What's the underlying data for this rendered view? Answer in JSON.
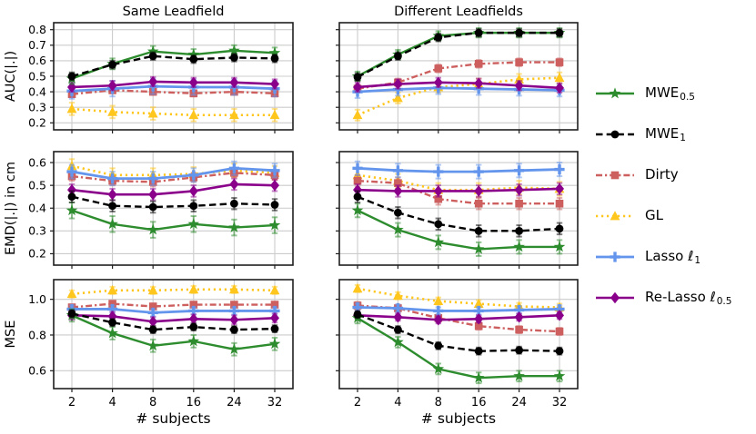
{
  "figure": {
    "background": "#ffffff",
    "xlabel": "# subjects",
    "categories": [
      "2",
      "4",
      "8",
      "16",
      "24",
      "32"
    ],
    "col_titles": [
      "Same Leadfield",
      "Different Leadfields"
    ],
    "grid_color": "#cccccc",
    "axis_color": "#1f1f1f",
    "text_color": "#000000",
    "draw_order": [
      "gl",
      "dirty",
      "lasso",
      "relasso",
      "mwe05",
      "mwe1"
    ]
  },
  "series_styles": [
    {
      "id": "mwe05",
      "label_main": "MWE",
      "label_sub": "0.5",
      "color": "#2d8c2d",
      "marker": "star",
      "dash": "solid",
      "lw": 2.4
    },
    {
      "id": "mwe1",
      "label_main": "MWE",
      "label_sub": "1",
      "color": "#000000",
      "marker": "circle",
      "dash": "dashed",
      "lw": 2.4
    },
    {
      "id": "dirty",
      "label_main": "Dirty",
      "label_sub": "",
      "color": "#cd5f5f",
      "marker": "square",
      "dash": "dashdot",
      "lw": 2.4
    },
    {
      "id": "gl",
      "label_main": "GL",
      "label_sub": "",
      "color": "#ffc61e",
      "marker": "triangle",
      "dash": "dotted",
      "lw": 2.6
    },
    {
      "id": "lasso",
      "label_main": "Lasso ℓ",
      "label_sub": "1",
      "color": "#6495ed",
      "marker": "plus",
      "dash": "solid",
      "lw": 2.8
    },
    {
      "id": "relasso",
      "label_main": "Re-Lasso ℓ",
      "label_sub": "0.5",
      "color": "#8b008b",
      "marker": "diamond",
      "dash": "solid",
      "lw": 2.6
    }
  ],
  "chart_data": [
    {
      "type": "line",
      "id": "auc-same",
      "row": 0,
      "col": 0,
      "title": "Same Leadfield",
      "ylabel": "AUC(|.|)",
      "x_categories": [
        "2",
        "4",
        "8",
        "16",
        "24",
        "32"
      ],
      "ylim": [
        0.155,
        0.845
      ],
      "yticks": [
        0.2,
        0.3,
        0.4,
        0.5,
        0.6,
        0.7,
        0.8
      ],
      "grid": true,
      "series": [
        {
          "id": "mwe05",
          "name": "MWE_0.5",
          "values": [
            0.485,
            0.58,
            0.66,
            0.64,
            0.665,
            0.65
          ],
          "err": 0.035
        },
        {
          "id": "mwe1",
          "name": "MWE_1",
          "values": [
            0.5,
            0.575,
            0.63,
            0.61,
            0.62,
            0.615
          ],
          "err": 0.025
        },
        {
          "id": "dirty",
          "name": "Dirty",
          "values": [
            0.385,
            0.41,
            0.4,
            0.39,
            0.4,
            0.39
          ],
          "err": 0.02
        },
        {
          "id": "gl",
          "name": "GL",
          "values": [
            0.29,
            0.27,
            0.26,
            0.25,
            0.25,
            0.25
          ],
          "err": 0.04
        },
        {
          "id": "lasso",
          "name": "Lasso l1",
          "values": [
            0.405,
            0.42,
            0.435,
            0.43,
            0.43,
            0.42
          ],
          "err": 0.05
        },
        {
          "id": "relasso",
          "name": "Re-Lasso l0.5",
          "values": [
            0.43,
            0.44,
            0.465,
            0.46,
            0.46,
            0.45
          ],
          "err": 0.03
        }
      ]
    },
    {
      "type": "line",
      "id": "auc-diff",
      "row": 0,
      "col": 1,
      "title": "Different Leadfields",
      "ylabel": "",
      "x_categories": [
        "2",
        "4",
        "8",
        "16",
        "24",
        "32"
      ],
      "ylim": [
        0.155,
        0.845
      ],
      "yticks": [
        0.2,
        0.3,
        0.4,
        0.5,
        0.6,
        0.7,
        0.8
      ],
      "grid": true,
      "series": [
        {
          "id": "mwe05",
          "name": "MWE_0.5",
          "values": [
            0.5,
            0.64,
            0.76,
            0.78,
            0.78,
            0.78
          ],
          "err": 0.03
        },
        {
          "id": "mwe1",
          "name": "MWE_1",
          "values": [
            0.495,
            0.63,
            0.75,
            0.78,
            0.78,
            0.78
          ],
          "err": 0.025
        },
        {
          "id": "dirty",
          "name": "Dirty",
          "values": [
            0.42,
            0.46,
            0.55,
            0.58,
            0.59,
            0.59
          ],
          "err": 0.025
        },
        {
          "id": "gl",
          "name": "GL",
          "values": [
            0.25,
            0.36,
            0.43,
            0.45,
            0.48,
            0.49
          ],
          "err": 0.035
        },
        {
          "id": "lasso",
          "name": "Lasso l1",
          "values": [
            0.4,
            0.415,
            0.425,
            0.42,
            0.415,
            0.41
          ],
          "err": 0.04
        },
        {
          "id": "relasso",
          "name": "Re-Lasso l0.5",
          "values": [
            0.43,
            0.45,
            0.46,
            0.455,
            0.44,
            0.425
          ],
          "err": 0.03
        }
      ]
    },
    {
      "type": "line",
      "id": "emd-same",
      "row": 1,
      "col": 0,
      "title": "",
      "ylabel": "EMD(|.|) in cm",
      "x_categories": [
        "2",
        "4",
        "8",
        "16",
        "24",
        "32"
      ],
      "ylim": [
        0.15,
        0.648
      ],
      "yticks": [
        0.2,
        0.3,
        0.4,
        0.5,
        0.6
      ],
      "grid": true,
      "series": [
        {
          "id": "mwe05",
          "name": "MWE_0.5",
          "values": [
            0.39,
            0.33,
            0.305,
            0.33,
            0.315,
            0.325
          ],
          "err": 0.035
        },
        {
          "id": "mwe1",
          "name": "MWE_1",
          "values": [
            0.45,
            0.41,
            0.405,
            0.41,
            0.42,
            0.415
          ],
          "err": 0.025
        },
        {
          "id": "dirty",
          "name": "Dirty",
          "values": [
            0.54,
            0.52,
            0.515,
            0.535,
            0.555,
            0.545
          ],
          "err": 0.02
        },
        {
          "id": "gl",
          "name": "GL",
          "values": [
            0.585,
            0.545,
            0.545,
            0.55,
            0.565,
            0.555
          ],
          "err": 0.03
        },
        {
          "id": "lasso",
          "name": "Lasso l1",
          "values": [
            0.56,
            0.53,
            0.53,
            0.545,
            0.575,
            0.565
          ],
          "err": 0.03
        },
        {
          "id": "relasso",
          "name": "Re-Lasso l0.5",
          "values": [
            0.48,
            0.46,
            0.46,
            0.475,
            0.505,
            0.5
          ],
          "err": 0.025
        }
      ]
    },
    {
      "type": "line",
      "id": "emd-diff",
      "row": 1,
      "col": 1,
      "title": "",
      "ylabel": "",
      "x_categories": [
        "2",
        "4",
        "8",
        "16",
        "24",
        "32"
      ],
      "ylim": [
        0.15,
        0.648
      ],
      "yticks": [
        0.2,
        0.3,
        0.4,
        0.5,
        0.6
      ],
      "grid": true,
      "series": [
        {
          "id": "mwe05",
          "name": "MWE_0.5",
          "values": [
            0.39,
            0.305,
            0.25,
            0.22,
            0.23,
            0.23
          ],
          "err": 0.03
        },
        {
          "id": "mwe1",
          "name": "MWE_1",
          "values": [
            0.45,
            0.38,
            0.33,
            0.3,
            0.3,
            0.31
          ],
          "err": 0.025
        },
        {
          "id": "dirty",
          "name": "Dirty",
          "values": [
            0.52,
            0.51,
            0.44,
            0.42,
            0.42,
            0.42
          ],
          "err": 0.025
        },
        {
          "id": "gl",
          "name": "GL",
          "values": [
            0.545,
            0.52,
            0.48,
            0.48,
            0.49,
            0.485
          ],
          "err": 0.03
        },
        {
          "id": "lasso",
          "name": "Lasso l1",
          "values": [
            0.575,
            0.565,
            0.56,
            0.56,
            0.565,
            0.57
          ],
          "err": 0.03
        },
        {
          "id": "relasso",
          "name": "Re-Lasso l0.5",
          "values": [
            0.48,
            0.475,
            0.475,
            0.475,
            0.48,
            0.485
          ],
          "err": 0.025
        }
      ]
    },
    {
      "type": "line",
      "id": "mse-same",
      "row": 2,
      "col": 0,
      "title": "",
      "ylabel": "MSE",
      "x_categories": [
        "2",
        "4",
        "8",
        "16",
        "24",
        "32"
      ],
      "ylim": [
        0.5,
        1.11
      ],
      "yticks": [
        0.6,
        0.8,
        1.0
      ],
      "grid": true,
      "series": [
        {
          "id": "mwe05",
          "name": "MWE_0.5",
          "values": [
            0.91,
            0.81,
            0.74,
            0.765,
            0.72,
            0.75
          ],
          "err": 0.035
        },
        {
          "id": "mwe1",
          "name": "MWE_1",
          "values": [
            0.92,
            0.87,
            0.83,
            0.845,
            0.83,
            0.835
          ],
          "err": 0.02
        },
        {
          "id": "dirty",
          "name": "Dirty",
          "values": [
            0.955,
            0.975,
            0.96,
            0.97,
            0.97,
            0.97
          ],
          "err": 0.015
        },
        {
          "id": "gl",
          "name": "GL",
          "values": [
            1.03,
            1.05,
            1.05,
            1.055,
            1.055,
            1.05
          ],
          "err": 0.02
        },
        {
          "id": "lasso",
          "name": "Lasso l1",
          "values": [
            0.945,
            0.945,
            0.925,
            0.935,
            0.935,
            0.935
          ],
          "err": 0.02
        },
        {
          "id": "relasso",
          "name": "Re-Lasso l0.5",
          "values": [
            0.91,
            0.905,
            0.875,
            0.89,
            0.885,
            0.895
          ],
          "err": 0.025
        }
      ]
    },
    {
      "type": "line",
      "id": "mse-diff",
      "row": 2,
      "col": 1,
      "title": "",
      "ylabel": "",
      "x_categories": [
        "2",
        "4",
        "8",
        "16",
        "24",
        "32"
      ],
      "ylim": [
        0.5,
        1.11
      ],
      "yticks": [
        0.6,
        0.8,
        1.0
      ],
      "grid": true,
      "series": [
        {
          "id": "mwe05",
          "name": "MWE_0.5",
          "values": [
            0.895,
            0.76,
            0.61,
            0.56,
            0.57,
            0.57
          ],
          "err": 0.03
        },
        {
          "id": "mwe1",
          "name": "MWE_1",
          "values": [
            0.915,
            0.83,
            0.74,
            0.71,
            0.715,
            0.71
          ],
          "err": 0.02
        },
        {
          "id": "dirty",
          "name": "Dirty",
          "values": [
            0.965,
            0.95,
            0.895,
            0.85,
            0.83,
            0.82
          ],
          "err": 0.02
        },
        {
          "id": "gl",
          "name": "GL",
          "values": [
            1.06,
            1.02,
            0.99,
            0.975,
            0.96,
            0.955
          ],
          "err": 0.02
        },
        {
          "id": "lasso",
          "name": "Lasso l1",
          "values": [
            0.955,
            0.95,
            0.935,
            0.935,
            0.94,
            0.945
          ],
          "err": 0.02
        },
        {
          "id": "relasso",
          "name": "Re-Lasso l0.5",
          "values": [
            0.91,
            0.9,
            0.885,
            0.89,
            0.9,
            0.91
          ],
          "err": 0.02
        }
      ]
    }
  ],
  "legend": {
    "items": [
      {
        "label_main": "MWE",
        "label_sub": "0.5"
      },
      {
        "label_main": "MWE",
        "label_sub": "1"
      },
      {
        "label_main": "Dirty",
        "label_sub": ""
      },
      {
        "label_main": "GL",
        "label_sub": ""
      },
      {
        "label_main": "Lasso ℓ",
        "label_sub": "1"
      },
      {
        "label_main": "Re-Lasso ℓ",
        "label_sub": "0.5"
      }
    ]
  }
}
